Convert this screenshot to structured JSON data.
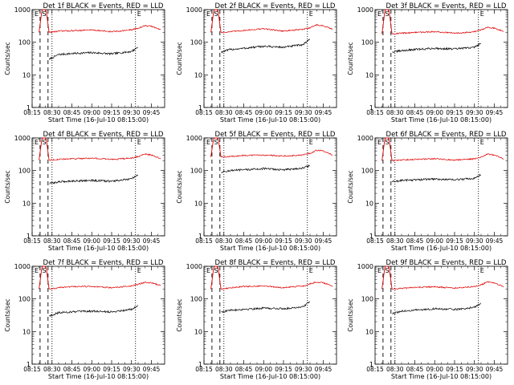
{
  "figure": {
    "x_axis_label": "Start Time (16-Jul-10 08:15:00)",
    "y_axis_label": "Counts/sec",
    "x_ticks": [
      "08:15",
      "08:30",
      "08:45",
      "09:00",
      "09:15",
      "09:30",
      "09:45"
    ],
    "y_ticks": [
      "1",
      "10",
      "100",
      "1000"
    ],
    "marker_labels": {
      "e": "E",
      "s": "S"
    },
    "colors": {
      "events": "#000000",
      "lld": "#e00000",
      "axes": "#000000",
      "background": "#ffffff"
    }
  },
  "chart_data": [
    {
      "type": "line",
      "title": "Det 1f BLACK = Events, RED = LLD",
      "xlabel": "Start Time (16-Jul-10 08:15:00)",
      "ylabel": "Counts/sec",
      "y_scale": "log",
      "ylim": [
        1,
        1000
      ],
      "xlim": [
        "08:15",
        "09:55"
      ],
      "x": [
        "08:28",
        "08:35",
        "08:45",
        "09:00",
        "09:15",
        "09:30",
        "09:35",
        "09:40",
        "09:45",
        "09:52"
      ],
      "series": [
        {
          "name": "Events",
          "color": "#000000",
          "values": [
            30,
            42,
            45,
            48,
            44,
            52,
            72,
            null,
            null,
            null
          ]
        },
        {
          "name": "LLD",
          "color": "#e00000",
          "values": [
            200,
            220,
            225,
            240,
            210,
            240,
            270,
            320,
            310,
            240
          ]
        }
      ],
      "vlines_dashed": [
        "08:21",
        "08:27"
      ],
      "vlines_dotted": [
        "08:30",
        "09:33"
      ],
      "peak_region": [
        "08:22",
        "08:26"
      ]
    },
    {
      "type": "line",
      "title": "Det 2f BLACK = Events, RED = LLD",
      "xlabel": "Start Time (16-Jul-10 08:15:00)",
      "ylabel": "Counts/sec",
      "y_scale": "log",
      "ylim": [
        1,
        1000
      ],
      "xlim": [
        "08:15",
        "09:55"
      ],
      "x": [
        "08:28",
        "08:35",
        "08:45",
        "09:00",
        "09:15",
        "09:30",
        "09:35",
        "09:40",
        "09:45",
        "09:52"
      ],
      "series": [
        {
          "name": "Events",
          "color": "#000000",
          "values": [
            50,
            60,
            65,
            75,
            70,
            85,
            130,
            null,
            null,
            null
          ]
        },
        {
          "name": "LLD",
          "color": "#e00000",
          "values": [
            200,
            210,
            230,
            260,
            220,
            250,
            280,
            340,
            320,
            250
          ]
        }
      ],
      "vlines_dashed": [
        "08:21",
        "08:27"
      ],
      "vlines_dotted": [
        "08:30",
        "09:33"
      ],
      "peak_region": [
        "08:22",
        "08:26"
      ]
    },
    {
      "type": "line",
      "title": "Det 3f BLACK = Events, RED = LLD",
      "xlabel": "Start Time (16-Jul-10 08:15:00)",
      "ylabel": "Counts/sec",
      "y_scale": "log",
      "ylim": [
        1,
        1000
      ],
      "xlim": [
        "08:15",
        "09:55"
      ],
      "x": [
        "08:28",
        "08:35",
        "08:45",
        "09:00",
        "09:15",
        "09:30",
        "09:35",
        "09:40",
        "09:45",
        "09:52"
      ],
      "series": [
        {
          "name": "Events",
          "color": "#000000",
          "values": [
            50,
            55,
            60,
            65,
            62,
            70,
            95,
            null,
            null,
            null
          ]
        },
        {
          "name": "LLD",
          "color": "#e00000",
          "values": [
            180,
            190,
            200,
            210,
            190,
            210,
            240,
            290,
            270,
            220
          ]
        }
      ],
      "vlines_dashed": [
        "08:21",
        "08:27"
      ],
      "vlines_dotted": [
        "08:30",
        "09:33"
      ],
      "peak_region": [
        "08:22",
        "08:26"
      ]
    },
    {
      "type": "line",
      "title": "Det 4f BLACK = Events, RED = LLD",
      "xlabel": "Start Time (16-Jul-10 08:15:00)",
      "ylabel": "Counts/sec",
      "y_scale": "log",
      "ylim": [
        1,
        1000
      ],
      "xlim": [
        "08:15",
        "09:55"
      ],
      "x": [
        "08:28",
        "08:35",
        "08:45",
        "09:00",
        "09:15",
        "09:30",
        "09:35",
        "09:40",
        "09:45",
        "09:52"
      ],
      "series": [
        {
          "name": "Events",
          "color": "#000000",
          "values": [
            40,
            45,
            48,
            50,
            47,
            55,
            75,
            null,
            null,
            null
          ]
        },
        {
          "name": "LLD",
          "color": "#e00000",
          "values": [
            210,
            220,
            230,
            240,
            220,
            240,
            270,
            320,
            300,
            230
          ]
        }
      ],
      "vlines_dashed": [
        "08:21",
        "08:27"
      ],
      "vlines_dotted": [
        "08:30",
        "09:33"
      ],
      "peak_region": [
        "08:22",
        "08:26"
      ]
    },
    {
      "type": "line",
      "title": "Det 5f BLACK = Events, RED = LLD",
      "xlabel": "Start Time (16-Jul-10 08:15:00)",
      "ylabel": "Counts/sec",
      "y_scale": "log",
      "ylim": [
        1,
        1000
      ],
      "xlim": [
        "08:15",
        "09:55"
      ],
      "x": [
        "08:28",
        "08:35",
        "08:45",
        "09:00",
        "09:15",
        "09:30",
        "09:35",
        "09:40",
        "09:45",
        "09:52"
      ],
      "series": [
        {
          "name": "Events",
          "color": "#000000",
          "values": [
            90,
            100,
            105,
            115,
            105,
            120,
            145,
            null,
            null,
            null
          ]
        },
        {
          "name": "LLD",
          "color": "#e00000",
          "values": [
            260,
            270,
            290,
            300,
            280,
            300,
            340,
            420,
            400,
            300
          ]
        }
      ],
      "vlines_dashed": [
        "08:21",
        "08:27"
      ],
      "vlines_dotted": [
        "08:30",
        "09:33"
      ],
      "peak_region": [
        "08:22",
        "08:26"
      ]
    },
    {
      "type": "line",
      "title": "Det 6f BLACK = Events, RED = LLD",
      "xlabel": "Start Time (16-Jul-10 08:15:00)",
      "ylabel": "Counts/sec",
      "y_scale": "log",
      "ylim": [
        1,
        1000
      ],
      "xlim": [
        "08:15",
        "09:55"
      ],
      "x": [
        "08:28",
        "08:35",
        "08:45",
        "09:00",
        "09:15",
        "09:30",
        "09:35",
        "09:40",
        "09:45",
        "09:52"
      ],
      "series": [
        {
          "name": "Events",
          "color": "#000000",
          "values": [
            45,
            50,
            52,
            55,
            52,
            58,
            75,
            null,
            null,
            null
          ]
        },
        {
          "name": "LLD",
          "color": "#e00000",
          "values": [
            200,
            210,
            220,
            230,
            210,
            230,
            260,
            320,
            300,
            230
          ]
        }
      ],
      "vlines_dashed": [
        "08:21",
        "08:27"
      ],
      "vlines_dotted": [
        "08:30",
        "09:33"
      ],
      "peak_region": [
        "08:22",
        "08:26"
      ]
    },
    {
      "type": "line",
      "title": "Det 7f BLACK = Events, RED = LLD",
      "xlabel": "Start Time (16-Jul-10 08:15:00)",
      "ylabel": "Counts/sec",
      "y_scale": "log",
      "ylim": [
        1,
        1000
      ],
      "xlim": [
        "08:15",
        "09:55"
      ],
      "x": [
        "08:28",
        "08:35",
        "08:45",
        "09:00",
        "09:15",
        "09:30",
        "09:35",
        "09:40",
        "09:45",
        "09:52"
      ],
      "series": [
        {
          "name": "Events",
          "color": "#000000",
          "values": [
            30,
            38,
            40,
            42,
            40,
            48,
            65,
            null,
            null,
            null
          ]
        },
        {
          "name": "LLD",
          "color": "#e00000",
          "values": [
            200,
            220,
            240,
            240,
            220,
            250,
            280,
            320,
            310,
            260
          ]
        }
      ],
      "vlines_dashed": [
        "08:21",
        "08:27"
      ],
      "vlines_dotted": [
        "08:30",
        "09:33"
      ],
      "peak_region": [
        "08:22",
        "08:26"
      ]
    },
    {
      "type": "line",
      "title": "Det 8f BLACK = Events, RED = LLD",
      "xlabel": "Start Time (16-Jul-10 08:15:00)",
      "ylabel": "Counts/sec",
      "y_scale": "log",
      "ylim": [
        1,
        1000
      ],
      "xlim": [
        "08:15",
        "09:55"
      ],
      "x": [
        "08:28",
        "08:35",
        "08:45",
        "09:00",
        "09:15",
        "09:30",
        "09:35",
        "09:40",
        "09:45",
        "09:52"
      ],
      "series": [
        {
          "name": "Events",
          "color": "#000000",
          "values": [
            40,
            45,
            48,
            52,
            50,
            58,
            85,
            null,
            null,
            null
          ]
        },
        {
          "name": "LLD",
          "color": "#e00000",
          "values": [
            200,
            220,
            240,
            250,
            220,
            250,
            290,
            330,
            310,
            250
          ]
        }
      ],
      "vlines_dashed": [
        "08:21",
        "08:27"
      ],
      "vlines_dotted": [
        "08:30",
        "09:33"
      ],
      "peak_region": [
        "08:22",
        "08:26"
      ]
    },
    {
      "type": "line",
      "title": "Det 9f BLACK = Events, RED = LLD",
      "xlabel": "Start Time (16-Jul-10 08:15:00)",
      "ylabel": "Counts/sec",
      "y_scale": "log",
      "ylim": [
        1,
        1000
      ],
      "xlim": [
        "08:15",
        "09:55"
      ],
      "x": [
        "08:28",
        "08:35",
        "08:45",
        "09:00",
        "09:15",
        "09:30",
        "09:35",
        "09:40",
        "09:45",
        "09:52"
      ],
      "series": [
        {
          "name": "Events",
          "color": "#000000",
          "values": [
            35,
            42,
            45,
            50,
            47,
            55,
            75,
            null,
            null,
            null
          ]
        },
        {
          "name": "LLD",
          "color": "#e00000",
          "values": [
            200,
            210,
            225,
            235,
            215,
            240,
            270,
            330,
            310,
            240
          ]
        }
      ],
      "vlines_dashed": [
        "08:21",
        "08:27"
      ],
      "vlines_dotted": [
        "08:30",
        "09:33"
      ],
      "peak_region": [
        "08:22",
        "08:26"
      ]
    }
  ]
}
